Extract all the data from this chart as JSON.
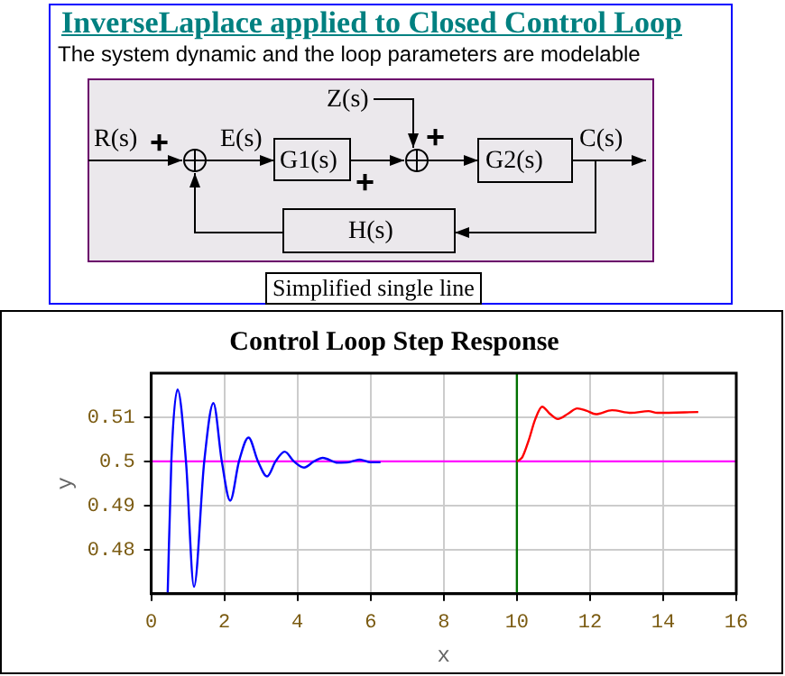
{
  "chart_data": [
    {
      "type": "other",
      "title": "InverseLaplace applied to Closed Control Loop",
      "subtitle": "The system dynamic and the loop parameters are modelable",
      "annotations": [
        "R(s)",
        "+",
        "E(s)",
        "G1(s)",
        "+",
        "Z(s)",
        "+",
        "G2(s)",
        "C(s)",
        "H(s)",
        "Simplified single line"
      ]
    },
    {
      "type": "line",
      "title": "Control Loop Step Response",
      "xlabel": "x",
      "ylabel": "y",
      "series": [
        {
          "color": "#0000ff",
          "x": [
            0.45,
            0.55,
            0.72,
            0.95,
            1.17,
            1.45,
            1.7,
            1.93,
            2.16,
            2.4,
            2.66,
            2.92,
            3.17,
            3.4,
            3.65,
            3.9,
            4.18,
            4.45,
            4.69,
            5.1,
            5.4,
            5.7,
            6.0,
            6.27
          ],
          "values": [
            0.47,
            0.5,
            0.5163,
            0.5,
            0.4716,
            0.5,
            0.5132,
            0.5,
            0.4911,
            0.5,
            0.5054,
            0.5,
            0.4966,
            0.5,
            0.5022,
            0.5,
            0.4986,
            0.5,
            0.5008,
            0.4997,
            0.4998,
            0.5004,
            0.4998,
            0.4998
          ]
        },
        {
          "color": "#ff0000",
          "x": [
            10,
            10.15,
            10.32,
            10.5,
            10.69,
            10.9,
            11.12,
            11.4,
            11.65,
            11.9,
            12.16,
            12.6,
            13.12,
            13.6,
            13.84,
            14.96
          ],
          "values": [
            0.5,
            0.501,
            0.5047,
            0.5095,
            0.5124,
            0.5108,
            0.5096,
            0.5108,
            0.512,
            0.5115,
            0.5107,
            0.5116,
            0.511,
            0.5114,
            0.511,
            0.5112
          ]
        }
      ],
      "xlim": [
        0,
        16
      ],
      "xticks": [
        0,
        2,
        4,
        6,
        8,
        10,
        12,
        14,
        16
      ],
      "ylim": [
        0.47,
        0.52
      ],
      "yticks": [
        0.48,
        0.49,
        0.5,
        0.51
      ],
      "ref_lines": [
        {
          "axis": "y",
          "value": 0.5,
          "color": "#ff00ff"
        },
        {
          "axis": "x",
          "value": 10,
          "color": "#007000"
        }
      ],
      "grid": true,
      "legend": false,
      "marker": "none"
    }
  ]
}
